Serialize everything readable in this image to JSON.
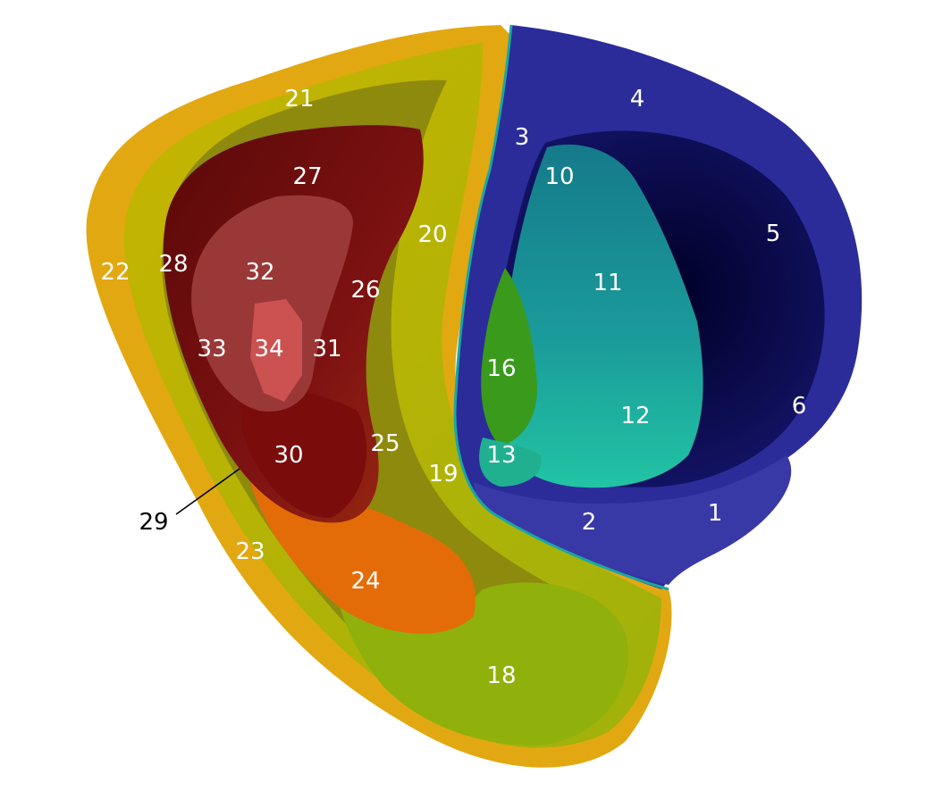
{
  "labels": {
    "r1": "1",
    "r2": "2",
    "r3": "3",
    "r4": "4",
    "r5": "5",
    "r6": "6",
    "r10": "10",
    "r11": "11",
    "r12": "12",
    "r13": "13",
    "r16": "16",
    "r18": "18",
    "r19": "19",
    "r20": "20",
    "r21": "21",
    "r22": "22",
    "r23": "23",
    "r24": "24",
    "r25": "25",
    "r26": "26",
    "r27": "27",
    "r28": "28",
    "r29": "29",
    "r30": "30",
    "r31": "31",
    "r32": "32",
    "r33": "33",
    "r34": "34"
  },
  "colors": {
    "blue_outer": "#2b2e9c",
    "blue_inner": "#0b0b4e",
    "teal": "#17a49a",
    "teal_light": "#1fc0a2",
    "green": "#3c9d1c",
    "yellow": "#d8c800",
    "gold": "#e0aa10",
    "yellow_green": "#96b60e",
    "orange": "#e36a08",
    "red_dark": "#6b0c0c",
    "red_mid": "#8c1818",
    "pink": "#c04a4a",
    "pink_light": "#d86a6a"
  }
}
